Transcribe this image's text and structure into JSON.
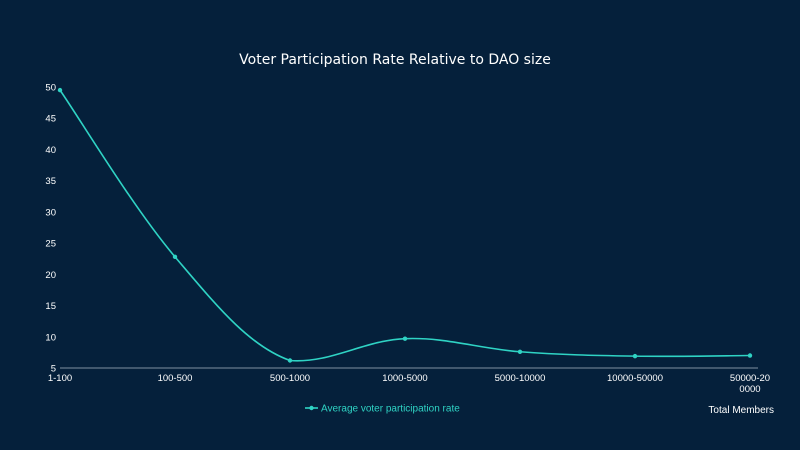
{
  "chart_data": {
    "type": "line",
    "title": "Voter Participation Rate Relative to DAO size",
    "xlabel": "Total Members",
    "ylabel": "",
    "categories": [
      "1-100",
      "100-500",
      "500-1000",
      "1000-5000",
      "5000-10000",
      "10000-50000",
      "50000-20\n0000"
    ],
    "ylim": [
      5,
      50
    ],
    "yticks": [
      5,
      10,
      15,
      20,
      25,
      30,
      35,
      40,
      45,
      50
    ],
    "series": [
      {
        "name": "Average voter participation rate",
        "values": [
          49.5,
          22.8,
          6.2,
          9.7,
          7.6,
          6.9,
          7.0
        ]
      }
    ],
    "grid": false,
    "legend_position": "bottom-center",
    "colors": {
      "background": "#05203b",
      "line": "#2fd3c4",
      "text": "#ffffff",
      "axis": "#7f8fa0"
    }
  }
}
